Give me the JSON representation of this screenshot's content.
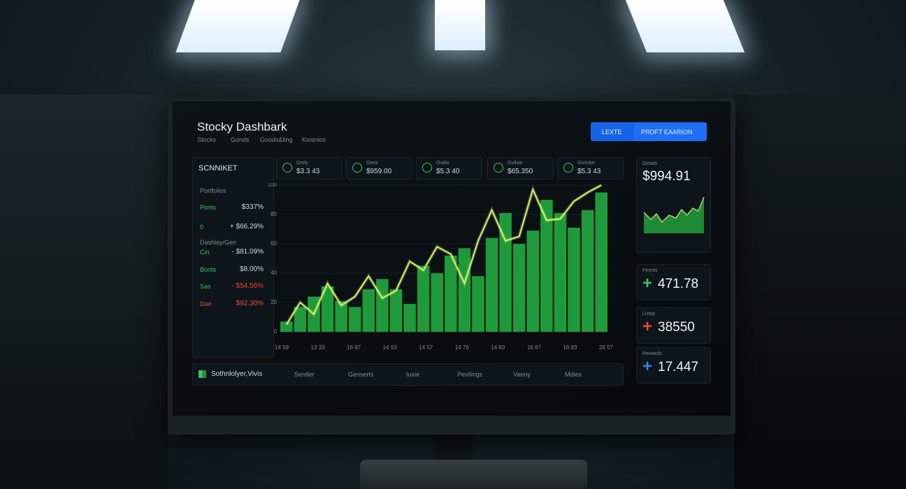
{
  "header": {
    "title": "Stocky Dashbark",
    "tabs": [
      "Stocks",
      "Gonds",
      "Goods&ling",
      "Kiosnios"
    ],
    "buttons": [
      "LEXTE",
      "PROFT EAARION"
    ]
  },
  "tickers": [
    {
      "name": "Orsly",
      "value": "$3.3 43"
    },
    {
      "name": "Onos",
      "value": "$959.00"
    },
    {
      "name": "Ouldo",
      "value": "$5.3 40"
    },
    {
      "name": "Guilsio",
      "value": "$65.350"
    },
    {
      "name": "Gonnbe",
      "value": "$5.3 43"
    }
  ],
  "sidebar": {
    "title": "SCNNIKET",
    "section": "Portfolios",
    "subsection": "Dashlay/Gen",
    "rows": [
      {
        "label": "Ponts",
        "value": "$337%"
      },
      {
        "label": "0",
        "value": "+ $66.29%"
      },
      {
        "label": "Cin",
        "value": "- $81.09%"
      },
      {
        "label": "Bonts",
        "value": "$8.00%"
      },
      {
        "label": "Sas",
        "value": "- $54.56%"
      },
      {
        "label": "Dae",
        "value": "$92.30%"
      }
    ]
  },
  "chart": {
    "bars": [
      7,
      17,
      24,
      31,
      21,
      17,
      29,
      36,
      29,
      19,
      45,
      40,
      52,
      57,
      38,
      64,
      81,
      60,
      69,
      90,
      81,
      71,
      83,
      95
    ],
    "line": [
      5,
      20,
      12,
      33,
      18,
      24,
      38,
      23,
      28,
      48,
      42,
      58,
      53,
      33,
      62,
      83,
      62,
      65,
      97,
      76,
      77,
      89,
      95,
      100
    ],
    "bar_color": "#1f9a3a",
    "line_color": "#d6f06a",
    "ylim": [
      0,
      100
    ],
    "yticks": [
      0,
      20,
      40,
      60,
      80,
      100
    ],
    "xlabels": [
      "14 59",
      "13 33",
      "16 97",
      "14 93",
      "14 57",
      "14 76",
      "14 83",
      "16 87",
      "18 83",
      "26 57"
    ]
  },
  "cards": [
    {
      "label": "Details",
      "value": "$994.91"
    },
    {
      "label": "Peests",
      "value": "471.78"
    },
    {
      "label": "Lixtay",
      "value": "38550"
    },
    {
      "label": "Rewards",
      "value": "17.447"
    }
  ],
  "footer": {
    "brand": "Sothnlolyer,Vivis",
    "tabs": [
      "Sentler",
      "Genserts",
      "Iuxie",
      "Pevilings",
      "Vaeny",
      "Mdies"
    ]
  }
}
